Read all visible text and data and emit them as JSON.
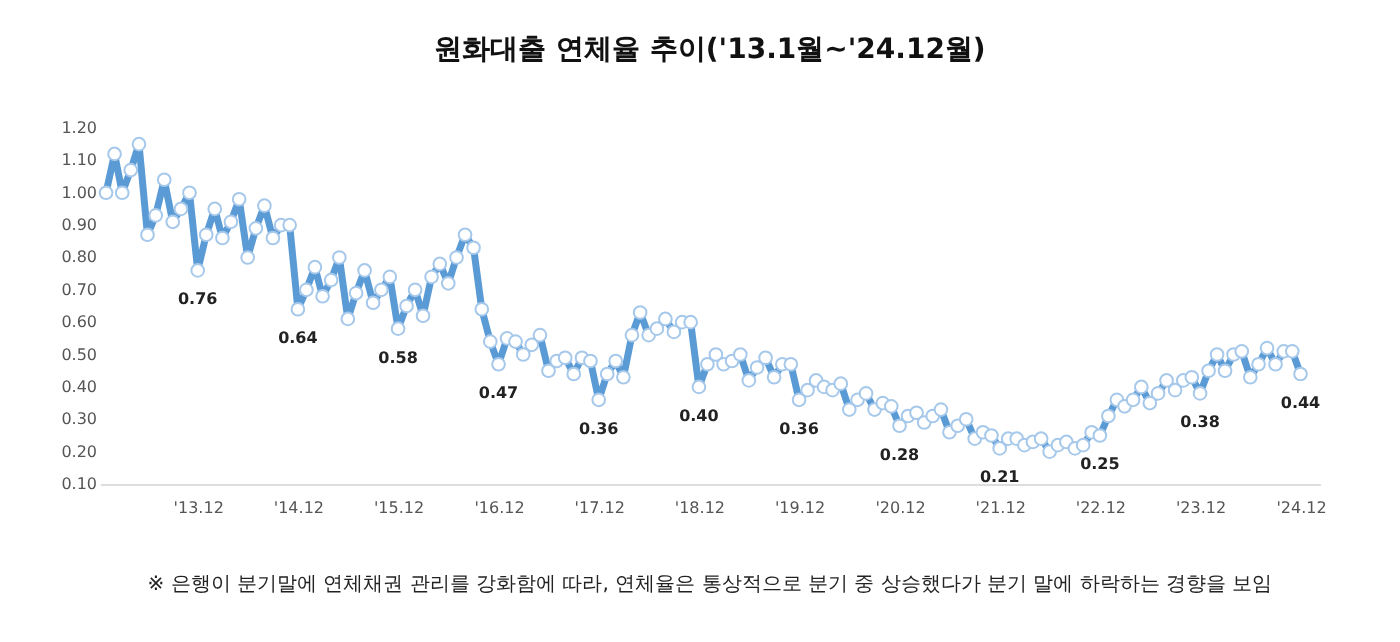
{
  "chart_data": {
    "type": "line",
    "title": "원화대출 연체율 추이('13.1월~'24.12월)",
    "x": [
      "2013-01",
      "2013-02",
      "2013-03",
      "2013-04",
      "2013-05",
      "2013-06",
      "2013-07",
      "2013-08",
      "2013-09",
      "2013-10",
      "2013-11",
      "2013-12",
      "2014-01",
      "2014-02",
      "2014-03",
      "2014-04",
      "2014-05",
      "2014-06",
      "2014-07",
      "2014-08",
      "2014-09",
      "2014-10",
      "2014-11",
      "2014-12",
      "2015-01",
      "2015-02",
      "2015-03",
      "2015-04",
      "2015-05",
      "2015-06",
      "2015-07",
      "2015-08",
      "2015-09",
      "2015-10",
      "2015-11",
      "2015-12",
      "2016-01",
      "2016-02",
      "2016-03",
      "2016-04",
      "2016-05",
      "2016-06",
      "2016-07",
      "2016-08",
      "2016-09",
      "2016-10",
      "2016-11",
      "2016-12",
      "2017-01",
      "2017-02",
      "2017-03",
      "2017-04",
      "2017-05",
      "2017-06",
      "2017-07",
      "2017-08",
      "2017-09",
      "2017-10",
      "2017-11",
      "2017-12",
      "2018-01",
      "2018-02",
      "2018-03",
      "2018-04",
      "2018-05",
      "2018-06",
      "2018-07",
      "2018-08",
      "2018-09",
      "2018-10",
      "2018-11",
      "2018-12",
      "2019-01",
      "2019-02",
      "2019-03",
      "2019-04",
      "2019-05",
      "2019-06",
      "2019-07",
      "2019-08",
      "2019-09",
      "2019-10",
      "2019-11",
      "2019-12",
      "2020-01",
      "2020-02",
      "2020-03",
      "2020-04",
      "2020-05",
      "2020-06",
      "2020-07",
      "2020-08",
      "2020-09",
      "2020-10",
      "2020-11",
      "2020-12",
      "2021-01",
      "2021-02",
      "2021-03",
      "2021-04",
      "2021-05",
      "2021-06",
      "2021-07",
      "2021-08",
      "2021-09",
      "2021-10",
      "2021-11",
      "2021-12",
      "2022-01",
      "2022-02",
      "2022-03",
      "2022-04",
      "2022-05",
      "2022-06",
      "2022-07",
      "2022-08",
      "2022-09",
      "2022-10",
      "2022-11",
      "2022-12",
      "2023-01",
      "2023-02",
      "2023-03",
      "2023-04",
      "2023-05",
      "2023-06",
      "2023-07",
      "2023-08",
      "2023-09",
      "2023-10",
      "2023-11",
      "2023-12",
      "2024-01",
      "2024-02",
      "2024-03",
      "2024-04",
      "2024-05",
      "2024-06",
      "2024-07",
      "2024-08",
      "2024-09",
      "2024-10",
      "2024-11",
      "2024-12"
    ],
    "series": [
      {
        "color": "#5b9bd5",
        "values": [
          1.0,
          1.12,
          1.0,
          1.07,
          1.15,
          0.87,
          0.93,
          1.04,
          0.91,
          0.95,
          1.0,
          0.76,
          0.87,
          0.95,
          0.86,
          0.91,
          0.98,
          0.8,
          0.89,
          0.96,
          0.86,
          0.9,
          0.9,
          0.64,
          0.7,
          0.77,
          0.68,
          0.73,
          0.8,
          0.61,
          0.69,
          0.76,
          0.66,
          0.7,
          0.74,
          0.58,
          0.65,
          0.7,
          0.62,
          0.74,
          0.78,
          0.72,
          0.8,
          0.87,
          0.83,
          0.64,
          0.54,
          0.47,
          0.55,
          0.54,
          0.5,
          0.53,
          0.56,
          0.45,
          0.48,
          0.49,
          0.44,
          0.49,
          0.48,
          0.36,
          0.44,
          0.48,
          0.43,
          0.56,
          0.63,
          0.56,
          0.58,
          0.61,
          0.57,
          0.6,
          0.6,
          0.4,
          0.47,
          0.5,
          0.47,
          0.48,
          0.5,
          0.42,
          0.46,
          0.49,
          0.43,
          0.47,
          0.47,
          0.36,
          0.39,
          0.42,
          0.4,
          0.39,
          0.41,
          0.33,
          0.36,
          0.38,
          0.33,
          0.35,
          0.34,
          0.28,
          0.31,
          0.32,
          0.29,
          0.31,
          0.33,
          0.26,
          0.28,
          0.3,
          0.24,
          0.26,
          0.25,
          0.21,
          0.24,
          0.24,
          0.22,
          0.23,
          0.24,
          0.2,
          0.22,
          0.23,
          0.21,
          0.22,
          0.26,
          0.25,
          0.31,
          0.36,
          0.34,
          0.36,
          0.4,
          0.35,
          0.38,
          0.42,
          0.39,
          0.42,
          0.43,
          0.38,
          0.45,
          0.5,
          0.45,
          0.5,
          0.51,
          0.43,
          0.47,
          0.52,
          0.47,
          0.51,
          0.51,
          0.44
        ]
      }
    ],
    "xlim": [
      "2012-12-10",
      "2025-02-10"
    ],
    "xticks": [
      {
        "value": "2013-12",
        "label": "'13.12"
      },
      {
        "value": "2014-12",
        "label": "'14.12"
      },
      {
        "value": "2015-12",
        "label": "'15.12"
      },
      {
        "value": "2016-12",
        "label": "'16.12"
      },
      {
        "value": "2017-12",
        "label": "'17.12"
      },
      {
        "value": "2018-12",
        "label": "'18.12"
      },
      {
        "value": "2019-12",
        "label": "'19.12"
      },
      {
        "value": "2020-12",
        "label": "'20.12"
      },
      {
        "value": "2021-12",
        "label": "'21.12"
      },
      {
        "value": "2022-12",
        "label": "'22.12"
      },
      {
        "value": "2023-12",
        "label": "'23.12"
      },
      {
        "value": "2024-12",
        "label": "'24.12"
      }
    ],
    "ylim": [
      0.1,
      1.2
    ],
    "yticks": [
      {
        "value": 0.1,
        "label": "0.10"
      },
      {
        "value": 0.2,
        "label": "0.20"
      },
      {
        "value": 0.3,
        "label": "0.30"
      },
      {
        "value": 0.4,
        "label": "0.40"
      },
      {
        "value": 0.5,
        "label": "0.50"
      },
      {
        "value": 0.6,
        "label": "0.60"
      },
      {
        "value": 0.7,
        "label": "0.70"
      },
      {
        "value": 0.8,
        "label": "0.80"
      },
      {
        "value": 0.9,
        "label": "0.90"
      },
      {
        "value": 1.0,
        "label": "1.00"
      },
      {
        "value": 1.1,
        "label": "1.10"
      },
      {
        "value": 1.2,
        "label": "1.20"
      }
    ],
    "marker": "circle",
    "line_style": "solid",
    "grid": false,
    "annotations": [
      {
        "text": "0.76",
        "x": "2013-12",
        "y": 0.76
      },
      {
        "text": "0.64",
        "x": "2014-12",
        "y": 0.64
      },
      {
        "text": "0.58",
        "x": "2015-12",
        "y": 0.58
      },
      {
        "text": "0.47",
        "x": "2016-12",
        "y": 0.47
      },
      {
        "text": "0.36",
        "x": "2017-12",
        "y": 0.36
      },
      {
        "text": "0.40",
        "x": "2018-12",
        "y": 0.4
      },
      {
        "text": "0.36",
        "x": "2019-12",
        "y": 0.36
      },
      {
        "text": "0.28",
        "x": "2020-12",
        "y": 0.28
      },
      {
        "text": "0.21",
        "x": "2021-12",
        "y": 0.21
      },
      {
        "text": "0.25",
        "x": "2022-12",
        "y": 0.25
      },
      {
        "text": "0.38",
        "x": "2023-12",
        "y": 0.38
      },
      {
        "text": "0.44",
        "x": "2024-12",
        "y": 0.44
      },
      "※ 은행이 분기말에 연체채권 관리를 강화함에 따라, 연체율은 통상적으로 분기 중 상승했다가 분기 말에 하락하는 경향을 보임"
    ]
  }
}
